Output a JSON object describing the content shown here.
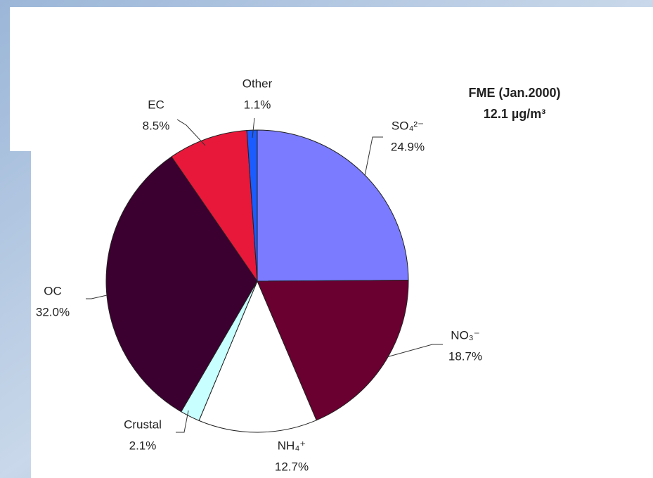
{
  "chart_data": {
    "type": "pie",
    "title": "FME (Jan.2000)",
    "subtitle": "12.1 µg/m³",
    "categories": [
      "SO₄²⁻",
      "NO₃⁻",
      "NH₄⁺",
      "Crustal",
      "OC",
      "EC",
      "Other"
    ],
    "values": [
      24.9,
      18.7,
      12.7,
      2.1,
      32.0,
      8.5,
      1.1
    ],
    "value_labels": [
      "24.9%",
      "18.7%",
      "12.7%",
      "2.1%",
      "32.0%",
      "8.5%",
      "1.1%"
    ],
    "colors": [
      "#7b7bff",
      "#6a0030",
      "#ffffff",
      "#c8ffff",
      "#3c0030",
      "#e8183a",
      "#1a5cff"
    ]
  }
}
